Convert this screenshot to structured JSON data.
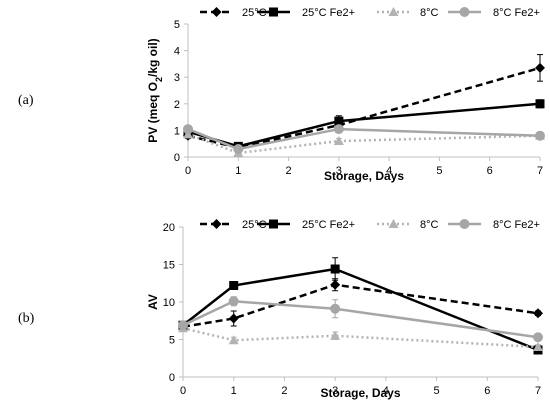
{
  "chart_data": [
    {
      "type": "line",
      "panel_label": "(a)",
      "xlabel": "Storage, Days",
      "ylabel_main": "PV (meq O",
      "ylabel_sub": "2",
      "ylabel_tail": "/kg oil)",
      "x_ticks": [
        0,
        1,
        2,
        3,
        4,
        5,
        6,
        7
      ],
      "y_ticks": [
        0,
        1,
        2,
        3,
        4,
        5
      ],
      "xlim": [
        0,
        7
      ],
      "ylim": [
        0,
        5
      ],
      "legend_position": "top",
      "x": [
        0,
        1,
        3,
        7
      ],
      "series": [
        {
          "name": "25°C",
          "values": [
            0.8,
            0.35,
            1.2,
            3.35
          ],
          "err": [
            0.1,
            0.05,
            0.15,
            0.5
          ],
          "color": "#000000",
          "dash": "dashed",
          "marker": "diamond"
        },
        {
          "name": "25°C Fe2+",
          "values": [
            0.95,
            0.4,
            1.35,
            2.0
          ],
          "err": [
            0.1,
            0.05,
            0.2,
            0.15
          ],
          "color": "#000000",
          "dash": "solid",
          "marker": "square"
        },
        {
          "name": "8°C",
          "values": [
            0.85,
            0.15,
            0.6,
            0.8
          ],
          "err": [
            0.05,
            0.05,
            0.1,
            0.05
          ],
          "color": "#b3b3b3",
          "dash": "dotted",
          "marker": "triangle"
        },
        {
          "name": "8°C Fe2+",
          "values": [
            1.05,
            0.3,
            1.05,
            0.8
          ],
          "err": [
            0.1,
            0.05,
            0.1,
            0.05
          ],
          "color": "#a6a6a6",
          "dash": "solid",
          "marker": "circle"
        }
      ]
    },
    {
      "type": "line",
      "panel_label": "(b)",
      "xlabel": "Storage, Days",
      "ylabel_main": "AV",
      "ylabel_sub": "",
      "ylabel_tail": "",
      "x_ticks": [
        0,
        1,
        2,
        3,
        4,
        5,
        6,
        7
      ],
      "y_ticks": [
        0,
        5,
        10,
        15,
        20
      ],
      "xlim": [
        0,
        7
      ],
      "ylim": [
        0,
        20
      ],
      "legend_position": "top",
      "x": [
        0,
        1,
        3,
        7
      ],
      "series": [
        {
          "name": "25°C",
          "values": [
            6.7,
            7.8,
            12.3,
            8.5
          ],
          "err": [
            0.5,
            1.0,
            0.8,
            0.3
          ],
          "color": "#000000",
          "dash": "dashed",
          "marker": "diamond"
        },
        {
          "name": "25°C Fe2+",
          "values": [
            6.9,
            12.2,
            14.4,
            3.6
          ],
          "err": [
            0.4,
            0.4,
            1.5,
            0.3
          ],
          "color": "#000000",
          "dash": "solid",
          "marker": "square"
        },
        {
          "name": "8°C",
          "values": [
            6.5,
            4.9,
            5.5,
            4.0
          ],
          "err": [
            0.3,
            0.4,
            0.5,
            0.3
          ],
          "color": "#b3b3b3",
          "dash": "dotted",
          "marker": "triangle"
        },
        {
          "name": "8°C Fe2+",
          "values": [
            6.9,
            10.1,
            9.1,
            5.3
          ],
          "err": [
            0.4,
            0.6,
            1.2,
            0.3
          ],
          "color": "#a6a6a6",
          "dash": "solid",
          "marker": "circle"
        }
      ]
    }
  ]
}
